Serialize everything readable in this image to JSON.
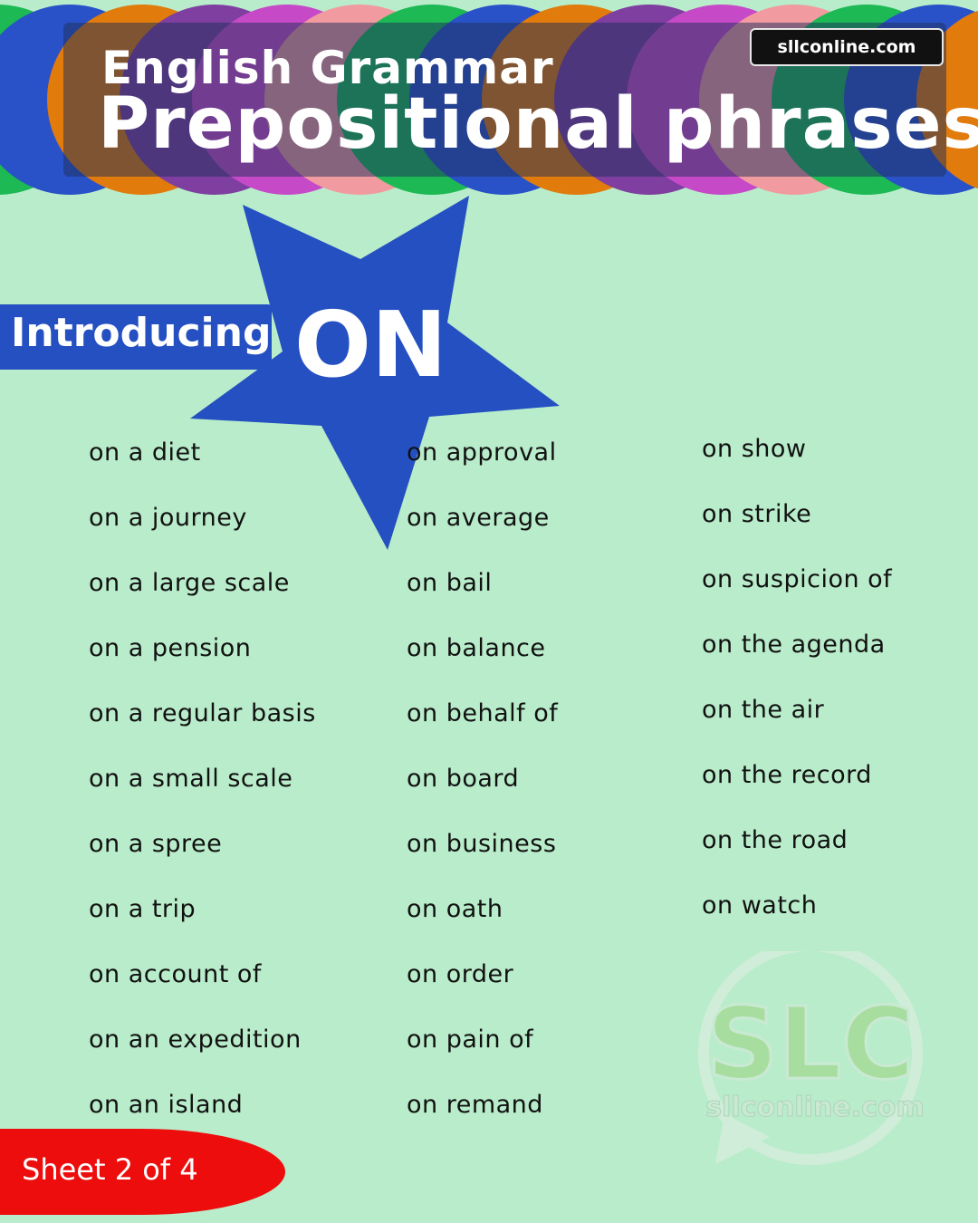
{
  "banner": {
    "subtitle": "English Grammar",
    "title": "Prepositional phrases",
    "site": "sllconline.com",
    "circle_colors": [
      "#1db954",
      "#2a52c8",
      "#e07b0c",
      "#7e3fa0",
      "#c64ac8",
      "#f19ba0",
      "#1db954",
      "#2a52c8",
      "#e07b0c",
      "#7e3fa0",
      "#c64ac8",
      "#f19ba0",
      "#1db954",
      "#2a52c8",
      "#e07b0c"
    ]
  },
  "intro": {
    "label": "Introducing",
    "preposition": "ON"
  },
  "phrases": {
    "column1": [
      "on a diet",
      "on a journey",
      "on a large scale",
      "on a pension",
      "on a regular basis",
      "on a small scale",
      "on a spree",
      "on a trip",
      "on account of",
      "on an expedition",
      "on an island"
    ],
    "column2": [
      "on approval",
      "on average",
      "on bail",
      "on balance",
      "on behalf of",
      "on board",
      "on business",
      "on oath",
      "on order",
      "on pain of",
      "on remand"
    ],
    "column3": [
      "on show",
      "on strike",
      "on suspicion of",
      "on the agenda",
      "on the air",
      "on the record",
      "on the road",
      "on watch"
    ]
  },
  "watermark": {
    "logo_text": "SLC",
    "site": "sllconline.com"
  },
  "footer": {
    "sheet_label": "Sheet 2 of 4"
  },
  "colors": {
    "background": "#b9ecca",
    "accent_blue": "#2450c2",
    "sheet_red": "#ee0d0d"
  }
}
